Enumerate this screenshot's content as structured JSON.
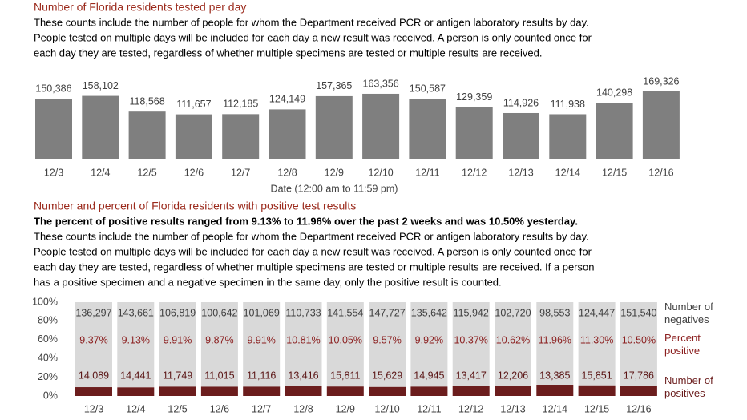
{
  "chart_data": [
    {
      "type": "bar",
      "title": "Number of Florida residents tested per day",
      "subtitle": [
        "These counts include the number of people for whom the Department received PCR or antigen laboratory results by day.",
        "People tested on multiple days will be included for each day a new result was received. A person is only counted once for",
        "each day they are tested, regardless of whether multiple specimens are tested or multiple results are received."
      ],
      "xlabel": "Date (12:00 am to 11:59 pm)",
      "categories": [
        "12/3",
        "12/4",
        "12/5",
        "12/6",
        "12/7",
        "12/8",
        "12/9",
        "12/10",
        "12/11",
        "12/12",
        "12/13",
        "12/14",
        "12/15",
        "12/16"
      ],
      "values": [
        150386,
        158102,
        118568,
        111657,
        112185,
        124149,
        157365,
        163356,
        150587,
        129359,
        114926,
        111938,
        140298,
        169326
      ],
      "value_labels": [
        "150,386",
        "158,102",
        "118,568",
        "111,657",
        "112,185",
        "124,149",
        "157,365",
        "163,356",
        "150,587",
        "129,359",
        "114,926",
        "111,938",
        "140,298",
        "169,326"
      ],
      "color": "#7f7f7f"
    },
    {
      "type": "bar",
      "stacking": "percent",
      "title": "Number and percent of Florida residents with positive test results",
      "highlight": "The percent of positive results ranged from 9.13% to 11.96% over the past 2 weeks and was 10.50% yesterday.",
      "subtitle": [
        "These counts include the number of people for whom the Department received PCR or antigen laboratory results by day.",
        "People tested on multiple days will be included for each day a new result was received. A person is only counted once for",
        "each day they are tested, regardless of whether multiple specimens are tested or multiple results are received. If a person",
        "has a positive specimen and a negative specimen in the same day, only the positive result is counted."
      ],
      "categories": [
        "12/3",
        "12/4",
        "12/5",
        "12/6",
        "12/7",
        "12/8",
        "12/9",
        "12/10",
        "12/11",
        "12/12",
        "12/13",
        "12/14",
        "12/15",
        "12/16"
      ],
      "ylim": [
        0,
        100
      ],
      "yticks": [
        {
          "value": 0,
          "label": "0%"
        },
        {
          "value": 20,
          "label": "20%"
        },
        {
          "value": 40,
          "label": "40%"
        },
        {
          "value": 60,
          "label": "60%"
        },
        {
          "value": 80,
          "label": "80%"
        },
        {
          "value": 100,
          "label": "100%"
        }
      ],
      "series": [
        {
          "name": "Number of negatives",
          "color": "#d9d9d9",
          "values": [
            136297,
            143661,
            106819,
            100642,
            101069,
            110733,
            141554,
            147727,
            135642,
            115942,
            102720,
            98553,
            124447,
            151540
          ],
          "value_labels": [
            "136,297",
            "143,661",
            "106,819",
            "100,642",
            "101,069",
            "110,733",
            "141,554",
            "147,727",
            "135,642",
            "115,942",
            "102,720",
            "98,553",
            "124,447",
            "151,540"
          ]
        },
        {
          "name": "Number of positives",
          "color": "#6b1d1d",
          "values": [
            14089,
            14441,
            11749,
            11015,
            11116,
            13416,
            15811,
            15629,
            14945,
            13417,
            12206,
            13385,
            15851,
            17786
          ],
          "value_labels": [
            "14,089",
            "14,441",
            "11,749",
            "11,015",
            "11,116",
            "13,416",
            "15,811",
            "15,629",
            "14,945",
            "13,417",
            "12,206",
            "13,385",
            "15,851",
            "17,786"
          ]
        }
      ],
      "percent_positive": {
        "name": "Percent positive",
        "values": [
          9.37,
          9.13,
          9.91,
          9.87,
          9.91,
          10.81,
          10.05,
          9.57,
          9.92,
          10.37,
          10.62,
          11.96,
          11.3,
          10.5
        ],
        "value_labels": [
          "9.37%",
          "9.13%",
          "9.91%",
          "9.87%",
          "9.91%",
          "10.81%",
          "10.05%",
          "9.57%",
          "9.92%",
          "10.37%",
          "10.62%",
          "11.96%",
          "11.30%",
          "10.50%"
        ]
      }
    }
  ]
}
